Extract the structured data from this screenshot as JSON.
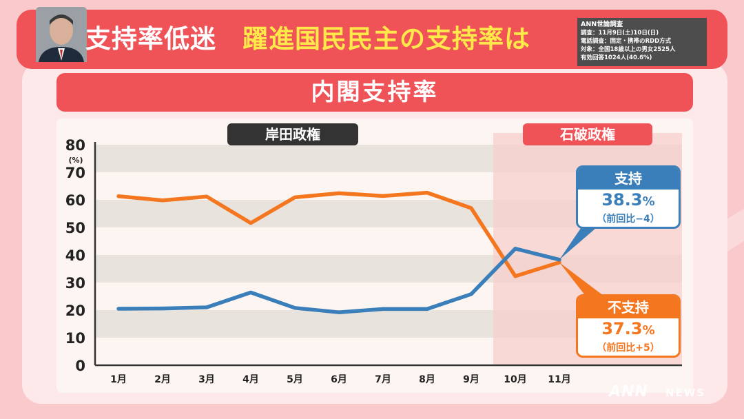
{
  "header": {
    "title": "支持率低迷",
    "subtitle": "躍進国民民主の支持率は"
  },
  "survey": {
    "line1": "ANN世論調査",
    "line2": "調査：11月9日(土)10日(日)",
    "line3": "電話調査：固定・携帯のRDD方式",
    "line4": "対象：全国18歳以上の男女2525人",
    "line5": "有効回答1024人(40.6%)"
  },
  "colors": {
    "header_bg": "#ef5358",
    "support": "#3b7fba",
    "nonsupport": "#f4761f",
    "ishiba_shade": "#f7cfcc",
    "kishida_label_bg": "#333333"
  },
  "eras": {
    "kishida": "岸田政権",
    "ishiba": "石破政権"
  },
  "callouts": {
    "support": {
      "label": "支持",
      "value": "38.3",
      "unit": "%",
      "diff": "（前回比−4）"
    },
    "nonsupport": {
      "label": "不支持",
      "value": "37.3",
      "unit": "%",
      "diff": "（前回比+5）"
    }
  },
  "logo": {
    "main": "ANN",
    "sub": "NEWS"
  },
  "chart_data": {
    "type": "line",
    "title": "内閣支持率",
    "ylabel": "(%)",
    "ylim": [
      0,
      80
    ],
    "yticks": [
      0,
      10,
      20,
      30,
      40,
      50,
      60,
      70,
      80
    ],
    "categories": [
      "1月",
      "2月",
      "3月",
      "4月",
      "5月",
      "6月",
      "7月",
      "8月",
      "9月",
      "10月",
      "11月"
    ],
    "series": [
      {
        "name": "不支持",
        "color": "#f4761f",
        "values": [
          61.3,
          59.8,
          61.2,
          51.6,
          60.9,
          62.4,
          61.4,
          62.6,
          57.0,
          32.3,
          37.3
        ]
      },
      {
        "name": "支持",
        "color": "#3b7fba",
        "values": [
          20.5,
          20.6,
          21.0,
          26.4,
          20.8,
          19.2,
          20.4,
          20.4,
          25.8,
          42.3,
          38.3
        ]
      }
    ],
    "grid": "alternating horizontal bands",
    "shaded_region_from": "10月"
  }
}
